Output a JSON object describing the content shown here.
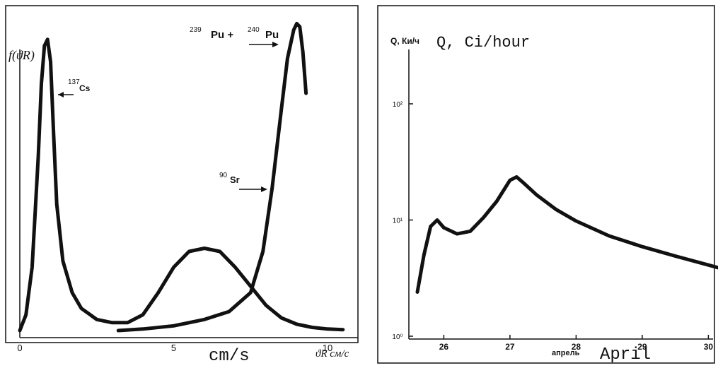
{
  "chart_data": [
    {
      "type": "line",
      "ylabel": "f(ϑR)",
      "xlabel_axis": "ϑR см/с",
      "xlabel_overlay": "cm/s",
      "x_ticks": [
        "0",
        "5",
        "10"
      ],
      "xlim": [
        0,
        11
      ],
      "ylim": [
        0,
        1
      ],
      "series": [
        {
          "name": "137Cs",
          "label_sup": "137",
          "label_main": "Cs",
          "x": [
            0.0,
            0.2,
            0.4,
            0.6,
            0.7,
            0.8,
            0.9,
            1.0,
            1.1,
            1.2,
            1.4,
            1.7,
            2.0,
            2.5,
            3.0,
            3.5,
            4.0,
            4.5,
            5.0,
            5.5,
            6.0,
            6.5,
            7.0,
            7.5,
            8.0,
            8.5,
            9.0,
            9.5,
            10.0,
            10.5
          ],
          "y": [
            0.0,
            0.05,
            0.2,
            0.55,
            0.78,
            0.9,
            0.92,
            0.85,
            0.62,
            0.4,
            0.22,
            0.12,
            0.07,
            0.035,
            0.025,
            0.025,
            0.05,
            0.12,
            0.2,
            0.25,
            0.26,
            0.25,
            0.2,
            0.14,
            0.08,
            0.04,
            0.02,
            0.01,
            0.005,
            0.003
          ]
        },
        {
          "name": "90Sr",
          "label_sup": "90",
          "label_main": "Sr",
          "x": [
            3.2,
            4.0,
            5.0,
            6.0,
            6.8,
            7.5,
            7.9,
            8.2,
            8.5,
            8.7,
            8.9,
            9.0,
            9.1,
            9.2,
            9.3
          ],
          "y": [
            0.0,
            0.005,
            0.015,
            0.035,
            0.06,
            0.12,
            0.25,
            0.45,
            0.7,
            0.86,
            0.95,
            0.97,
            0.96,
            0.88,
            0.75
          ]
        },
        {
          "name": "239Pu + 240Pu",
          "label_sup1": "239",
          "label_mid": "Pu + ",
          "label_sup2": "240",
          "label_end": "Pu",
          "x": [
            3.2,
            4.0,
            5.0,
            6.0,
            6.8,
            7.5,
            7.9,
            8.2,
            8.5,
            8.7,
            8.9,
            9.0,
            9.1,
            9.2,
            9.3
          ],
          "y": [
            0.0,
            0.005,
            0.015,
            0.035,
            0.06,
            0.12,
            0.25,
            0.45,
            0.7,
            0.86,
            0.95,
            0.97,
            0.96,
            0.88,
            0.75
          ]
        }
      ]
    },
    {
      "type": "line",
      "ylabel_ru": "Q, Ки/ч",
      "ylabel_en": "Q, Ci/hour",
      "y_scale": "log",
      "y_ticks": [
        "10⁰",
        "10¹",
        "10²"
      ],
      "x_ticks": [
        "26",
        "27",
        "28",
        "29",
        "30"
      ],
      "xlabel_ru": "апрель",
      "xlabel_en": "April",
      "xlim": [
        25.55,
        32.5
      ],
      "series": [
        {
          "x": [
            25.6,
            25.7,
            25.8,
            25.9,
            26.0,
            26.2,
            26.4,
            26.6,
            26.8,
            27.0,
            27.1,
            27.2,
            27.4,
            27.7,
            28.0,
            28.5,
            29.0,
            29.5,
            30.0,
            30.6
          ],
          "y": [
            2.4,
            5.0,
            8.8,
            10.0,
            8.6,
            7.6,
            8.0,
            10.5,
            14.5,
            22.0,
            23.5,
            21.0,
            16.5,
            12.3,
            9.8,
            7.3,
            5.9,
            4.9,
            4.1,
            3.3
          ]
        }
      ]
    }
  ]
}
